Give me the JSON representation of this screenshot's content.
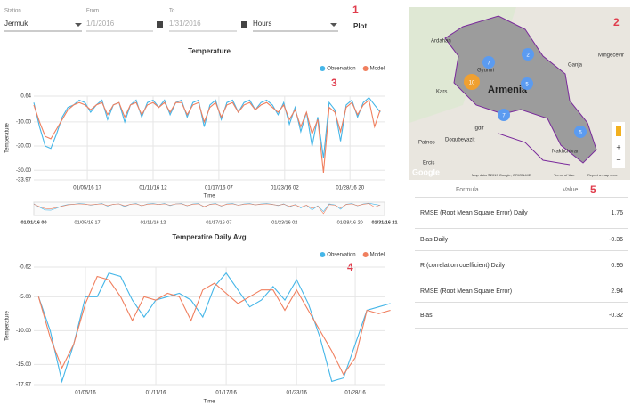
{
  "controls": {
    "station_label": "Station",
    "station": "Jermuk",
    "from_label": "From",
    "from": "1/1/2016",
    "to_label": "To",
    "to": "1/31/2016",
    "interval": "Hours",
    "plot": "Plot"
  },
  "annotations": [
    "1",
    "2",
    "3",
    "4",
    "5"
  ],
  "chart_data": [
    {
      "type": "line",
      "title": "Temperature",
      "x_label": "Time",
      "y_label": "Temperature",
      "x": [
        0,
        12,
        24,
        36,
        48,
        60,
        72,
        84,
        96,
        108,
        120,
        132,
        144,
        156,
        168,
        180,
        192,
        204,
        216,
        228,
        240,
        252,
        264,
        276,
        288,
        300,
        312,
        324,
        336,
        348,
        360,
        372,
        384,
        396,
        408,
        420,
        432,
        444,
        456,
        468,
        480,
        492,
        504,
        516,
        528,
        540,
        552,
        564,
        576,
        588,
        600,
        612,
        624,
        636,
        648,
        660,
        672,
        684,
        696,
        708,
        720,
        732
      ],
      "series": [
        {
          "name": "Observation",
          "color": "#45b6e8",
          "values": [
            -2,
            -12,
            -20,
            -21,
            -15,
            -8,
            -4,
            -3,
            -1,
            -2,
            -6,
            -3,
            -1,
            -9,
            -3,
            -2,
            -10,
            -3,
            -1,
            -8,
            -2,
            -1,
            -4,
            -1,
            -7,
            -2,
            -1,
            -8,
            -2,
            -1,
            -12,
            -3,
            -1,
            -9,
            -2,
            -1,
            -6,
            -2,
            -1,
            -5,
            -2,
            -1,
            -3,
            -7,
            -2,
            -11,
            -4,
            -14,
            -6,
            -20,
            -8,
            -25,
            -2,
            -5,
            -18,
            -3,
            -1,
            -8,
            -2,
            0,
            -3,
            -6
          ]
        },
        {
          "name": "Model",
          "color": "#f07f5e",
          "values": [
            -3,
            -10,
            -16,
            -17,
            -13,
            -9,
            -5,
            -3,
            -2,
            -3,
            -5,
            -3,
            -2,
            -7,
            -3,
            -2,
            -8,
            -3,
            -2,
            -7,
            -3,
            -2,
            -4,
            -2,
            -6,
            -2,
            -2,
            -7,
            -3,
            -2,
            -10,
            -4,
            -2,
            -8,
            -3,
            -2,
            -6,
            -3,
            -2,
            -5,
            -3,
            -2,
            -4,
            -6,
            -3,
            -9,
            -5,
            -12,
            -6,
            -15,
            -9,
            -31,
            -4,
            -6,
            -14,
            -4,
            -2,
            -7,
            -3,
            -1,
            -12,
            -5
          ]
        }
      ],
      "xlim": [
        0,
        741
      ],
      "ylim": [
        -33.97,
        0.64
      ],
      "xticks": [
        {
          "value": 113,
          "label": "01/05/16 17"
        },
        {
          "value": 252,
          "label": "01/11/16 12"
        },
        {
          "value": 391,
          "label": "01/17/16 07"
        },
        {
          "value": 530,
          "label": "01/23/16 02"
        },
        {
          "value": 668,
          "label": "01/28/16 20"
        }
      ],
      "yticks": [
        0.64,
        {
          "value": -10,
          "label": "-10.00"
        },
        {
          "value": -20,
          "label": "-20.00"
        },
        {
          "value": -30,
          "label": "-30.00"
        },
        -33.97
      ],
      "navigator_ticks": [
        {
          "value": 0,
          "label": "01/01/16 00"
        },
        {
          "value": 113,
          "label": "01/05/16 17"
        },
        {
          "value": 252,
          "label": "01/11/16 12"
        },
        {
          "value": 391,
          "label": "01/17/16 07"
        },
        {
          "value": 530,
          "label": "01/23/16 02"
        },
        {
          "value": 668,
          "label": "01/28/16 20"
        },
        {
          "value": 741,
          "label": "01/31/16 21"
        }
      ],
      "grid": true
    },
    {
      "type": "line",
      "title": "Temperatire Daily Avg",
      "x_label": "Time",
      "y_label": "Temperature",
      "x": [
        1,
        2,
        3,
        4,
        5,
        6,
        7,
        8,
        9,
        10,
        11,
        12,
        13,
        14,
        15,
        16,
        17,
        18,
        19,
        20,
        21,
        22,
        23,
        24,
        25,
        26,
        27,
        28,
        29,
        30,
        31
      ],
      "series": [
        {
          "name": "Observation",
          "color": "#45b6e8",
          "values": [
            -5,
            -10,
            -17.5,
            -12,
            -5,
            -5,
            -1.5,
            -2,
            -5.5,
            -8,
            -5.5,
            -5,
            -4.5,
            -5.5,
            -8,
            -3.5,
            -1.5,
            -4,
            -6.5,
            -5.5,
            -3.5,
            -5.5,
            -2.5,
            -6,
            -11,
            -17.5,
            -17,
            -12,
            -7,
            -6.5,
            -6
          ]
        },
        {
          "name": "Model",
          "color": "#f07f5e",
          "values": [
            -5,
            -11,
            -15.5,
            -12,
            -6,
            -2,
            -2.5,
            -5,
            -8.5,
            -5,
            -5.5,
            -4.5,
            -5,
            -8.5,
            -4,
            -3,
            -4.5,
            -6,
            -5,
            -4,
            -4,
            -7,
            -4,
            -7,
            -10,
            -13,
            -16.5,
            -14,
            -7,
            -7.5,
            -7
          ]
        }
      ],
      "xlim": [
        0.6,
        30.5
      ],
      "ylim": [
        -17.97,
        -0.62
      ],
      "xticks": [
        {
          "value": 5,
          "label": "01/05/16"
        },
        {
          "value": 11,
          "label": "01/11/16"
        },
        {
          "value": 17,
          "label": "01/17/16"
        },
        {
          "value": 23,
          "label": "01/23/16"
        },
        {
          "value": 28,
          "label": "01/28/16"
        }
      ],
      "yticks": [
        -0.62,
        {
          "value": -5,
          "label": "-5.00"
        },
        {
          "value": -10,
          "label": "-10.00"
        },
        {
          "value": -15,
          "label": "-15.00"
        },
        -17.97
      ],
      "grid": true
    }
  ],
  "map": {
    "country": "Armenia",
    "places": [
      "Gyumri",
      "Ganja",
      "Mingecevir",
      "Nakhchivan",
      "Ardahan",
      "Kars",
      "Igdir",
      "Dogubeyazit",
      "Patnos",
      "Ercis"
    ],
    "clusters": [
      "7",
      "2",
      "10",
      "5",
      "7",
      "5"
    ],
    "attribution": "Map data ©2019 Google, ORION-ME",
    "terms": "Terms of Use",
    "report": "Report a map error",
    "logo": "Google"
  },
  "table": {
    "headers": [
      "Formula",
      "Value"
    ],
    "rows": [
      [
        "RMSE (Root Mean Square Error) Daily",
        1.76
      ],
      [
        "Bias Daily",
        -0.36
      ],
      [
        "R (correlation coefficient) Daily",
        0.95
      ],
      [
        "RMSE (Root Mean Square Error)",
        2.94
      ],
      [
        "Bias",
        -0.32
      ]
    ]
  }
}
